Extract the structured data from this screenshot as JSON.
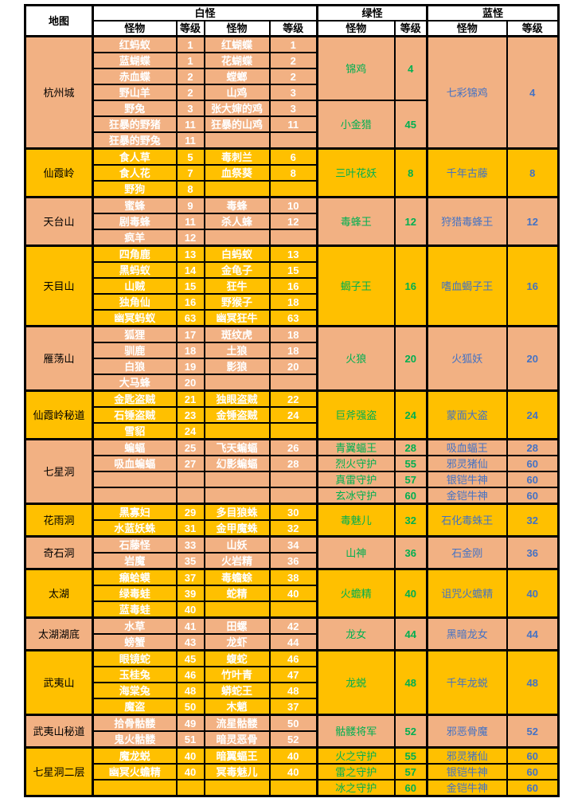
{
  "colors": {
    "section_bg_salmon": "#F2B183",
    "section_bg_gold": "#FFC000",
    "white_monster_text": "#FFFFFF",
    "green_monster_text": "#00B050",
    "blue_monster_text": "#4472C4",
    "grid_border": "#000000",
    "header_bg": "#FFFFFF"
  },
  "table": {
    "header": {
      "map": "地图",
      "groups": [
        {
          "label": "白怪",
          "cols": 4
        },
        {
          "label": "绿怪",
          "cols": 2
        },
        {
          "label": "蓝怪",
          "cols": 2
        }
      ],
      "sub": [
        "怪物",
        "等级",
        "怪物",
        "等级",
        "怪物",
        "等级",
        "怪物",
        "等级"
      ]
    },
    "sections": [
      {
        "map": "杭州城",
        "bg": "salmon",
        "rows": [
          [
            "红蚂蚁",
            "1",
            "红蝴蝶",
            "1"
          ],
          [
            "蓝蝴蝶",
            "1",
            "花蝴蝶",
            "2"
          ],
          [
            "赤血蝶",
            "2",
            "螳螂",
            "2"
          ],
          [
            "野山羊",
            "2",
            "山鸡",
            "3"
          ],
          [
            "野兔",
            "3",
            "张大婶的鸡",
            "3"
          ],
          [
            "狂暴的野猪",
            "11",
            "狂暴的山鸡",
            "11"
          ],
          [
            "狂暴的野兔",
            "11",
            "",
            ""
          ]
        ],
        "green": [
          {
            "name": "锦鸡",
            "level": "4",
            "span": 4
          },
          {
            "name": "小金猎",
            "level": "45",
            "span": 3
          }
        ],
        "blue": [
          {
            "name": "七彩锦鸡",
            "level": "4",
            "span": 7
          }
        ]
      },
      {
        "map": "仙霞岭",
        "bg": "gold",
        "rows": [
          [
            "食人草",
            "5",
            "毒刺兰",
            "6"
          ],
          [
            "食人花",
            "7",
            "血祭葵",
            "8"
          ],
          [
            "野狗",
            "8",
            "",
            ""
          ]
        ],
        "green": [
          {
            "name": "三叶花妖",
            "level": "8",
            "span": 3
          }
        ],
        "blue": [
          {
            "name": "千年古藤",
            "level": "8",
            "span": 3
          }
        ]
      },
      {
        "map": "天台山",
        "bg": "salmon",
        "rows": [
          [
            "蜜蜂",
            "9",
            "毒蜂",
            "10"
          ],
          [
            "剧毒蜂",
            "11",
            "杀人蜂",
            "12"
          ],
          [
            "疯羊",
            "12",
            "",
            ""
          ]
        ],
        "green": [
          {
            "name": "毒蜂王",
            "level": "12",
            "span": 3
          }
        ],
        "blue": [
          {
            "name": "狩猎毒蜂王",
            "level": "12",
            "span": 3
          }
        ]
      },
      {
        "map": "天目山",
        "bg": "gold",
        "rows": [
          [
            "四角鹿",
            "13",
            "白蚂蚁",
            "13"
          ],
          [
            "黑蚂蚁",
            "14",
            "金龟子",
            "15"
          ],
          [
            "山贼",
            "15",
            "狂牛",
            "16"
          ],
          [
            "独角仙",
            "16",
            "野猴子",
            "18"
          ],
          [
            "幽冥蚂蚁",
            "63",
            "幽冥狂牛",
            "63"
          ]
        ],
        "green": [
          {
            "name": "蝎子王",
            "level": "16",
            "span": 5
          }
        ],
        "blue": [
          {
            "name": "嗜血蝎子王",
            "level": "16",
            "span": 5
          }
        ]
      },
      {
        "map": "雁荡山",
        "bg": "salmon",
        "rows": [
          [
            "狐狸",
            "17",
            "斑纹虎",
            "18"
          ],
          [
            "驯鹿",
            "18",
            "土狼",
            "18"
          ],
          [
            "白狼",
            "19",
            "影狼",
            "20"
          ],
          [
            "大马蜂",
            "20",
            "",
            ""
          ]
        ],
        "green": [
          {
            "name": "火狼",
            "level": "20",
            "span": 4
          }
        ],
        "blue": [
          {
            "name": "火狐妖",
            "level": "20",
            "span": 4
          }
        ]
      },
      {
        "map": "仙霞岭秘道",
        "bg": "gold",
        "rows": [
          [
            "金匙盗贼",
            "21",
            "独眼盗贼",
            "22"
          ],
          [
            "石锤盗贼",
            "23",
            "金锤盗贼",
            "24"
          ],
          [
            "雪貂",
            "24",
            "",
            ""
          ]
        ],
        "green": [
          {
            "name": "巨斧强盗",
            "level": "24",
            "span": 3
          }
        ],
        "blue": [
          {
            "name": "蒙面大盗",
            "level": "24",
            "span": 3
          }
        ]
      },
      {
        "map": "七星洞",
        "bg": "salmon",
        "rows": [
          [
            "蝙蝠",
            "25",
            "飞天蝙蝠",
            "26"
          ],
          [
            "吸血蝙蝠",
            "27",
            "幻影蝙蝠",
            "28"
          ],
          [
            "",
            "",
            "",
            ""
          ],
          [
            "",
            "",
            "",
            ""
          ]
        ],
        "green": [
          {
            "name": "青翼蝠王",
            "level": "28",
            "span": 1
          },
          {
            "name": "烈火守护",
            "level": "55",
            "span": 1
          },
          {
            "name": "真雷守护",
            "level": "57",
            "span": 1
          },
          {
            "name": "玄冰守护",
            "level": "60",
            "span": 1
          }
        ],
        "blue": [
          {
            "name": "吸血蝠王",
            "level": "28",
            "span": 1
          },
          {
            "name": "邪灵猪仙",
            "level": "60",
            "span": 1
          },
          {
            "name": "银铠牛神",
            "level": "60",
            "span": 1
          },
          {
            "name": "金铠牛神",
            "level": "60",
            "span": 1
          }
        ]
      },
      {
        "map": "花雨洞",
        "bg": "gold",
        "rows": [
          [
            "黑寡妇",
            "29",
            "多目狼蛛",
            "30"
          ],
          [
            "水蓝妖蛛",
            "31",
            "金甲魔蛛",
            "32"
          ]
        ],
        "green": [
          {
            "name": "毒魅儿",
            "level": "32",
            "span": 2
          }
        ],
        "blue": [
          {
            "name": "石化毒蛛王",
            "level": "32",
            "span": 2
          }
        ]
      },
      {
        "map": "奇石洞",
        "bg": "salmon",
        "rows": [
          [
            "石藤怪",
            "33",
            "山妖",
            "34"
          ],
          [
            "岩魔",
            "35",
            "火岩精",
            "36"
          ]
        ],
        "green": [
          {
            "name": "山神",
            "level": "36",
            "span": 2
          }
        ],
        "blue": [
          {
            "name": "石金刚",
            "level": "36",
            "span": 2
          }
        ]
      },
      {
        "map": "太湖",
        "bg": "gold",
        "rows": [
          [
            "癞蛤蟆",
            "37",
            "毒蟾蜍",
            "38"
          ],
          [
            "绿毒蛙",
            "39",
            "蛇精",
            "40"
          ],
          [
            "蓝毒蛙",
            "40",
            "",
            ""
          ]
        ],
        "green": [
          {
            "name": "火蟾精",
            "level": "40",
            "span": 3
          }
        ],
        "blue": [
          {
            "name": "诅咒火蟾精",
            "level": "40",
            "span": 3
          }
        ]
      },
      {
        "map": "太湖湖底",
        "bg": "salmon",
        "rows": [
          [
            "水草",
            "41",
            "田螺",
            "42"
          ],
          [
            "螃蟹",
            "43",
            "龙虾",
            "44"
          ]
        ],
        "green": [
          {
            "name": "龙女",
            "level": "44",
            "span": 2
          }
        ],
        "blue": [
          {
            "name": "黑暗龙女",
            "level": "44",
            "span": 2
          }
        ]
      },
      {
        "map": "武夷山",
        "bg": "gold",
        "rows": [
          [
            "眼镜蛇",
            "45",
            "蝮蛇",
            "46"
          ],
          [
            "玉桂兔",
            "46",
            "竹叶青",
            "47"
          ],
          [
            "海棠兔",
            "48",
            "蟒蛇王",
            "48"
          ],
          [
            "魔盗",
            "50",
            "木魈",
            "37"
          ]
        ],
        "green": [
          {
            "name": "龙蜕",
            "level": "48",
            "span": 4
          }
        ],
        "blue": [
          {
            "name": "千年龙蜕",
            "level": "48",
            "span": 4
          }
        ]
      },
      {
        "map": "武夷山秘道",
        "bg": "salmon",
        "rows": [
          [
            "拾骨骷髅",
            "49",
            "流星骷髅",
            "50"
          ],
          [
            "鬼火骷髅",
            "51",
            "暗灵恶骨",
            "52"
          ]
        ],
        "green": [
          {
            "name": "骷髅将军",
            "level": "52",
            "span": 2
          }
        ],
        "blue": [
          {
            "name": "邪恶骨魔",
            "level": "52",
            "span": 2
          }
        ]
      },
      {
        "map": "七星洞二层",
        "bg": "gold",
        "rows": [
          [
            "魔龙蜕",
            "40",
            "暗翼蝠王",
            "40"
          ],
          [
            "幽冥火蟾精",
            "40",
            "冥毒魅儿",
            "40"
          ],
          [
            "",
            "",
            "",
            ""
          ]
        ],
        "green": [
          {
            "name": "火之守护",
            "level": "55",
            "span": 1
          },
          {
            "name": "雷之守护",
            "level": "57",
            "span": 1
          },
          {
            "name": "冰之守护",
            "level": "60",
            "span": 1
          }
        ],
        "blue": [
          {
            "name": "邪灵猪仙",
            "level": "60",
            "span": 1
          },
          {
            "name": "银铠牛神",
            "level": "60",
            "span": 1
          },
          {
            "name": "金铠牛神",
            "level": "60",
            "span": 1
          }
        ]
      }
    ]
  }
}
